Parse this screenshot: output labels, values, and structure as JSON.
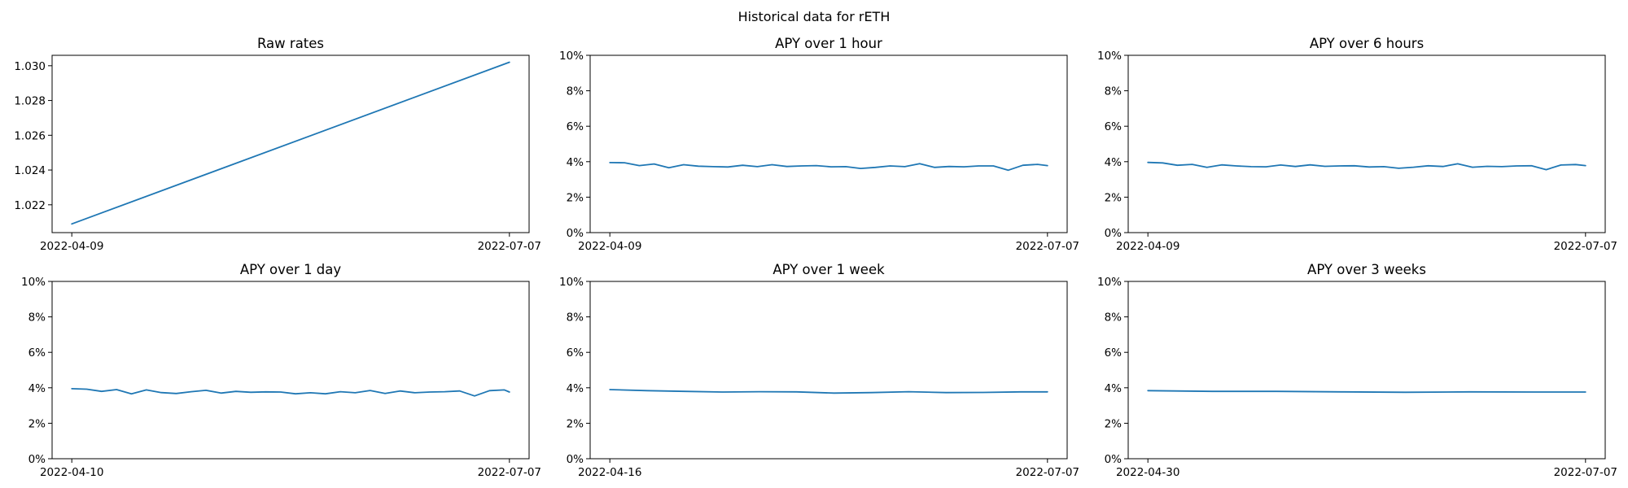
{
  "figure": {
    "title": "Historical data for rETH",
    "line_color": "#1f77b4"
  },
  "chart_data": [
    {
      "type": "line",
      "title": "Raw rates",
      "xlabel": "",
      "ylabel": "",
      "x_range": [
        "2022-04-09",
        "2022-07-07"
      ],
      "x_tick_labels": [
        "2022-04-09",
        "2022-07-07"
      ],
      "ylim": [
        1.0204,
        1.0306
      ],
      "y_ticks": [
        1.022,
        1.024,
        1.026,
        1.028,
        1.03
      ],
      "y_tick_labels": [
        "1.022",
        "1.024",
        "1.026",
        "1.028",
        "1.030"
      ],
      "grid": false,
      "series": [
        {
          "x": [
            "2022-04-09",
            "2022-07-07"
          ],
          "values": [
            1.0209,
            1.0302
          ]
        }
      ]
    },
    {
      "type": "line",
      "title": "APY over 1 hour",
      "xlabel": "",
      "ylabel": "",
      "x_range": [
        "2022-04-09",
        "2022-07-07"
      ],
      "x_tick_labels": [
        "2022-04-09",
        "2022-07-07"
      ],
      "ylim": [
        0,
        0.1
      ],
      "y_ticks": [
        0,
        0.02,
        0.04,
        0.06,
        0.08,
        0.1
      ],
      "y_tick_labels": [
        "0%",
        "2%",
        "4%",
        "6%",
        "8%",
        "10%"
      ],
      "grid": false,
      "series": [
        {
          "x": [
            "2022-04-09",
            "2022-04-12",
            "2022-04-15",
            "2022-04-18",
            "2022-04-21",
            "2022-04-24",
            "2022-04-27",
            "2022-04-30",
            "2022-05-03",
            "2022-05-06",
            "2022-05-09",
            "2022-05-12",
            "2022-05-15",
            "2022-05-18",
            "2022-05-21",
            "2022-05-24",
            "2022-05-27",
            "2022-05-30",
            "2022-06-02",
            "2022-06-05",
            "2022-06-08",
            "2022-06-11",
            "2022-06-14",
            "2022-06-17",
            "2022-06-20",
            "2022-06-23",
            "2022-06-26",
            "2022-06-29",
            "2022-07-02",
            "2022-07-05",
            "2022-07-07"
          ],
          "values": [
            0.0395,
            0.0394,
            0.0378,
            0.0387,
            0.0366,
            0.0383,
            0.0375,
            0.0372,
            0.037,
            0.038,
            0.0372,
            0.0383,
            0.0373,
            0.0376,
            0.0378,
            0.0371,
            0.0372,
            0.0362,
            0.0368,
            0.0376,
            0.0372,
            0.0389,
            0.0368,
            0.0373,
            0.0371,
            0.0376,
            0.0376,
            0.0352,
            0.038,
            0.0385,
            0.0378
          ]
        }
      ]
    },
    {
      "type": "line",
      "title": "APY over 6 hours",
      "xlabel": "",
      "ylabel": "",
      "x_range": [
        "2022-04-09",
        "2022-07-07"
      ],
      "x_tick_labels": [
        "2022-04-09",
        "2022-07-07"
      ],
      "ylim": [
        0,
        0.1
      ],
      "y_ticks": [
        0,
        0.02,
        0.04,
        0.06,
        0.08,
        0.1
      ],
      "y_tick_labels": [
        "0%",
        "2%",
        "4%",
        "6%",
        "8%",
        "10%"
      ],
      "grid": false,
      "series": [
        {
          "x": [
            "2022-04-09",
            "2022-04-12",
            "2022-04-15",
            "2022-04-18",
            "2022-04-21",
            "2022-04-24",
            "2022-04-27",
            "2022-04-30",
            "2022-05-03",
            "2022-05-06",
            "2022-05-09",
            "2022-05-12",
            "2022-05-15",
            "2022-05-18",
            "2022-05-21",
            "2022-05-24",
            "2022-05-27",
            "2022-05-30",
            "2022-06-02",
            "2022-06-05",
            "2022-06-08",
            "2022-06-11",
            "2022-06-14",
            "2022-06-17",
            "2022-06-20",
            "2022-06-23",
            "2022-06-26",
            "2022-06-29",
            "2022-07-02",
            "2022-07-05",
            "2022-07-07"
          ],
          "values": [
            0.0396,
            0.0393,
            0.038,
            0.0385,
            0.0368,
            0.0382,
            0.0376,
            0.0372,
            0.0371,
            0.0381,
            0.0373,
            0.0382,
            0.0374,
            0.0376,
            0.0377,
            0.037,
            0.0372,
            0.0363,
            0.0369,
            0.0377,
            0.0373,
            0.0388,
            0.0369,
            0.0374,
            0.0372,
            0.0376,
            0.0377,
            0.0355,
            0.0381,
            0.0384,
            0.0378
          ]
        }
      ]
    },
    {
      "type": "line",
      "title": "APY over 1 day",
      "xlabel": "",
      "ylabel": "",
      "x_range": [
        "2022-04-10",
        "2022-07-07"
      ],
      "x_tick_labels": [
        "2022-04-10",
        "2022-07-07"
      ],
      "ylim": [
        0,
        0.1
      ],
      "y_ticks": [
        0,
        0.02,
        0.04,
        0.06,
        0.08,
        0.1
      ],
      "y_tick_labels": [
        "0%",
        "2%",
        "4%",
        "6%",
        "8%",
        "10%"
      ],
      "grid": false,
      "series": [
        {
          "x": [
            "2022-04-10",
            "2022-04-13",
            "2022-04-16",
            "2022-04-19",
            "2022-04-22",
            "2022-04-25",
            "2022-04-28",
            "2022-05-01",
            "2022-05-04",
            "2022-05-07",
            "2022-05-10",
            "2022-05-13",
            "2022-05-16",
            "2022-05-19",
            "2022-05-22",
            "2022-05-25",
            "2022-05-28",
            "2022-05-31",
            "2022-06-03",
            "2022-06-06",
            "2022-06-09",
            "2022-06-12",
            "2022-06-15",
            "2022-06-18",
            "2022-06-21",
            "2022-06-24",
            "2022-06-27",
            "2022-06-30",
            "2022-07-03",
            "2022-07-06",
            "2022-07-07"
          ],
          "values": [
            0.0395,
            0.0392,
            0.038,
            0.039,
            0.0366,
            0.0388,
            0.0373,
            0.0368,
            0.0378,
            0.0386,
            0.037,
            0.038,
            0.0375,
            0.0377,
            0.0376,
            0.0366,
            0.0372,
            0.0366,
            0.0378,
            0.0372,
            0.0385,
            0.0368,
            0.0382,
            0.0372,
            0.0376,
            0.0378,
            0.0382,
            0.0354,
            0.0384,
            0.0388,
            0.0376
          ]
        }
      ]
    },
    {
      "type": "line",
      "title": "APY over 1 week",
      "xlabel": "",
      "ylabel": "",
      "x_range": [
        "2022-04-16",
        "2022-07-07"
      ],
      "x_tick_labels": [
        "2022-04-16",
        "2022-07-07"
      ],
      "ylim": [
        0,
        0.1
      ],
      "y_ticks": [
        0,
        0.02,
        0.04,
        0.06,
        0.08,
        0.1
      ],
      "y_tick_labels": [
        "0%",
        "2%",
        "4%",
        "6%",
        "8%",
        "10%"
      ],
      "grid": false,
      "series": [
        {
          "x": [
            "2022-04-16",
            "2022-04-23",
            "2022-04-30",
            "2022-05-07",
            "2022-05-14",
            "2022-05-21",
            "2022-05-28",
            "2022-06-04",
            "2022-06-11",
            "2022-06-18",
            "2022-06-25",
            "2022-07-02",
            "2022-07-07"
          ],
          "values": [
            0.039,
            0.0384,
            0.038,
            0.0376,
            0.0378,
            0.0377,
            0.037,
            0.0373,
            0.0378,
            0.0373,
            0.0374,
            0.0377,
            0.0377
          ]
        }
      ]
    },
    {
      "type": "line",
      "title": "APY over 3 weeks",
      "xlabel": "",
      "ylabel": "",
      "x_range": [
        "2022-04-30",
        "2022-07-07"
      ],
      "x_tick_labels": [
        "2022-04-30",
        "2022-07-07"
      ],
      "ylim": [
        0,
        0.1
      ],
      "y_ticks": [
        0,
        0.02,
        0.04,
        0.06,
        0.08,
        0.1
      ],
      "y_tick_labels": [
        "0%",
        "2%",
        "4%",
        "6%",
        "8%",
        "10%"
      ],
      "grid": false,
      "series": [
        {
          "x": [
            "2022-04-30",
            "2022-05-10",
            "2022-05-20",
            "2022-05-30",
            "2022-06-09",
            "2022-06-19",
            "2022-06-29",
            "2022-07-07"
          ],
          "values": [
            0.0384,
            0.038,
            0.038,
            0.0377,
            0.0375,
            0.0377,
            0.0376,
            0.0376
          ]
        }
      ]
    }
  ]
}
